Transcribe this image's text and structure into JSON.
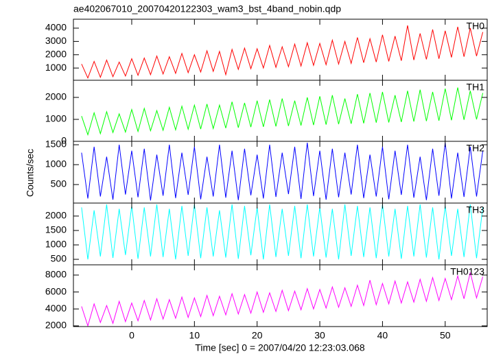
{
  "chart_data": [
    {
      "type": "line",
      "title": "ae402067010_20070420122303_wam3_bst_4band_nobin.qdp",
      "x": [
        -8,
        -7,
        -6,
        -5,
        -4,
        -3,
        -2,
        -1,
        0,
        1,
        2,
        3,
        4,
        5,
        6,
        7,
        8,
        9,
        10,
        11,
        12,
        13,
        14,
        15,
        16,
        17,
        18,
        19,
        20,
        21,
        22,
        23,
        24,
        25,
        26,
        27,
        28,
        29,
        30,
        31,
        32,
        33,
        34,
        35,
        36,
        37,
        38,
        39,
        40,
        41,
        42,
        43,
        44,
        45,
        46,
        47,
        48,
        49,
        50,
        51,
        52,
        53,
        54,
        55,
        56
      ],
      "series": [
        {
          "name": "TH0",
          "color": "#ff0000",
          "values": [
            1300,
            250,
            1500,
            300,
            1600,
            350,
            1450,
            400,
            1700,
            450,
            1750,
            500,
            1900,
            550,
            1850,
            600,
            2100,
            650,
            2000,
            700,
            2300,
            750,
            2250,
            500,
            2400,
            900,
            2500,
            950,
            2450,
            1000,
            2700,
            1050,
            2600,
            1100,
            2800,
            1150,
            2900,
            1200,
            2850,
            1250,
            3100,
            1300,
            3000,
            1350,
            3300,
            1400,
            3200,
            1450,
            3500,
            1500,
            3400,
            1550,
            4200,
            1600,
            3600,
            1650,
            3900,
            1700,
            3800,
            1800,
            4100,
            1850,
            4000,
            1900,
            3700
          ]
        }
      ],
      "xlim": [
        -9.3,
        56.7
      ],
      "xticks": [
        0,
        10,
        20,
        30,
        40,
        50
      ],
      "ylim": [
        80,
        4670
      ],
      "yticks": [
        1000,
        2000,
        3000,
        4000
      ]
    },
    {
      "type": "line",
      "x": [
        -8,
        -7,
        -6,
        -5,
        -4,
        -3,
        -2,
        -1,
        0,
        1,
        2,
        3,
        4,
        5,
        6,
        7,
        8,
        9,
        10,
        11,
        12,
        13,
        14,
        15,
        16,
        17,
        18,
        19,
        20,
        21,
        22,
        23,
        24,
        25,
        26,
        27,
        28,
        29,
        30,
        31,
        32,
        33,
        34,
        35,
        36,
        37,
        38,
        39,
        40,
        41,
        42,
        43,
        44,
        45,
        46,
        47,
        48,
        49,
        50,
        51,
        52,
        53,
        54,
        55,
        56
      ],
      "series": [
        {
          "name": "TH1",
          "color": "#00ff00",
          "values": [
            1150,
            300,
            1300,
            350,
            1350,
            400,
            1250,
            420,
            1450,
            450,
            1500,
            480,
            1400,
            500,
            1550,
            520,
            1600,
            550,
            1650,
            560,
            1700,
            580,
            1650,
            600,
            1800,
            620,
            1750,
            650,
            1850,
            660,
            1900,
            680,
            1950,
            700,
            1850,
            720,
            2000,
            740,
            2050,
            760,
            2100,
            780,
            1950,
            800,
            2150,
            820,
            2200,
            850,
            2250,
            860,
            2100,
            880,
            2300,
            900,
            2350,
            920,
            2250,
            940,
            2400,
            960,
            2450,
            980,
            2300,
            1000,
            2200
          ]
        }
      ],
      "xlim": [
        -9.3,
        56.7
      ],
      "xticks": [
        0,
        10,
        20,
        30,
        40,
        50
      ],
      "ylim": [
        0,
        2780
      ],
      "yticks": [
        0,
        1000,
        2000
      ]
    },
    {
      "type": "line",
      "y_label": "Counts/sec",
      "x": [
        -8,
        -7,
        -6,
        -5,
        -4,
        -3,
        -2,
        -1,
        0,
        1,
        2,
        3,
        4,
        5,
        6,
        7,
        8,
        9,
        10,
        11,
        12,
        13,
        14,
        15,
        16,
        17,
        18,
        19,
        20,
        21,
        22,
        23,
        24,
        25,
        26,
        27,
        28,
        29,
        30,
        31,
        32,
        33,
        34,
        35,
        36,
        37,
        38,
        39,
        40,
        41,
        42,
        43,
        44,
        45,
        46,
        47,
        48,
        49,
        50,
        51,
        52,
        53,
        54,
        55,
        56
      ],
      "series": [
        {
          "name": "TH2",
          "color": "#0000ff",
          "values": [
            1300,
            150,
            1450,
            200,
            1200,
            120,
            1500,
            250,
            1350,
            180,
            1400,
            100,
            1250,
            220,
            1500,
            160,
            1300,
            240,
            1450,
            130,
            1200,
            200,
            1500,
            170,
            1350,
            110,
            1400,
            230,
            1250,
            150,
            1500,
            190,
            1300,
            260,
            1450,
            140,
            1550,
            210,
            1350,
            120,
            1400,
            180,
            1300,
            250,
            1500,
            160,
            1250,
            200,
            1450,
            130,
            1350,
            240,
            1500,
            170,
            1200,
            110,
            1400,
            220,
            1550,
            150,
            1300,
            190,
            1450,
            200,
            1350
          ]
        }
      ],
      "xlim": [
        -9.3,
        56.7
      ],
      "xticks": [
        0,
        10,
        20,
        30,
        40,
        50
      ],
      "ylim": [
        35,
        1586
      ],
      "yticks": [
        500,
        1000,
        1500
      ]
    },
    {
      "type": "line",
      "x": [
        -8,
        -7,
        -6,
        -5,
        -4,
        -3,
        -2,
        -1,
        0,
        1,
        2,
        3,
        4,
        5,
        6,
        7,
        8,
        9,
        10,
        11,
        12,
        13,
        14,
        15,
        16,
        17,
        18,
        19,
        20,
        21,
        22,
        23,
        24,
        25,
        26,
        27,
        28,
        29,
        30,
        31,
        32,
        33,
        34,
        35,
        36,
        37,
        38,
        39,
        40,
        41,
        42,
        43,
        44,
        45,
        46,
        47,
        48,
        49,
        50,
        51,
        52,
        53,
        54,
        55,
        56
      ],
      "series": [
        {
          "name": "TH3",
          "color": "#00ffff",
          "values": [
            2300,
            500,
            2200,
            600,
            2400,
            550,
            2250,
            650,
            2350,
            520,
            2300,
            600,
            2400,
            580,
            2250,
            500,
            2350,
            620,
            2400,
            540,
            2300,
            600,
            2200,
            560,
            2400,
            520,
            2350,
            640,
            2300,
            500,
            2400,
            580,
            2250,
            620,
            2350,
            540,
            2400,
            600,
            2300,
            560,
            2250,
            500,
            2400,
            620,
            2350,
            580,
            2300,
            540,
            2400,
            600,
            2250,
            520,
            2350,
            600,
            2400,
            560,
            2300,
            500,
            2350,
            620,
            2250,
            580,
            2400,
            540,
            2300
          ]
        }
      ],
      "xlim": [
        -9.3,
        56.7
      ],
      "xticks": [
        0,
        10,
        20,
        30,
        40,
        50
      ],
      "ylim": [
        310,
        2450
      ],
      "yticks": [
        500,
        1000,
        1500,
        2000
      ]
    },
    {
      "type": "line",
      "x_label": "Time [sec] 0 = 2007/04/20 12:23:03.068",
      "x": [
        -8,
        -7,
        -6,
        -5,
        -4,
        -3,
        -2,
        -1,
        0,
        1,
        2,
        3,
        4,
        5,
        6,
        7,
        8,
        9,
        10,
        11,
        12,
        13,
        14,
        15,
        16,
        17,
        18,
        19,
        20,
        21,
        22,
        23,
        24,
        25,
        26,
        27,
        28,
        29,
        30,
        31,
        32,
        33,
        34,
        35,
        36,
        37,
        38,
        39,
        40,
        41,
        42,
        43,
        44,
        45,
        46,
        47,
        48,
        49,
        50,
        51,
        52,
        53,
        54,
        55,
        56
      ],
      "series": [
        {
          "name": "TH0123",
          "color": "#ff00ff",
          "values": [
            4300,
            2000,
            4600,
            2400,
            4400,
            2300,
            4900,
            2500,
            4700,
            2600,
            5000,
            2700,
            5200,
            2800,
            5100,
            2900,
            5400,
            3000,
            5300,
            3100,
            5600,
            3200,
            5500,
            3300,
            5800,
            3400,
            5700,
            3500,
            6000,
            3600,
            5900,
            3700,
            6200,
            3800,
            6100,
            3900,
            6400,
            4000,
            6300,
            4100,
            6600,
            4200,
            6500,
            4300,
            6800,
            4400,
            7400,
            4500,
            7000,
            4600,
            7300,
            4700,
            7200,
            4800,
            7500,
            4900,
            7700,
            5000,
            7600,
            5100,
            7900,
            5200,
            8300,
            5300,
            7800
          ]
        }
      ],
      "xlim": [
        -9.3,
        56.7
      ],
      "xticks": [
        0,
        10,
        20,
        30,
        40,
        50
      ],
      "ylim": [
        1920,
        9210
      ],
      "yticks": [
        2000,
        4000,
        6000,
        8000
      ]
    }
  ]
}
